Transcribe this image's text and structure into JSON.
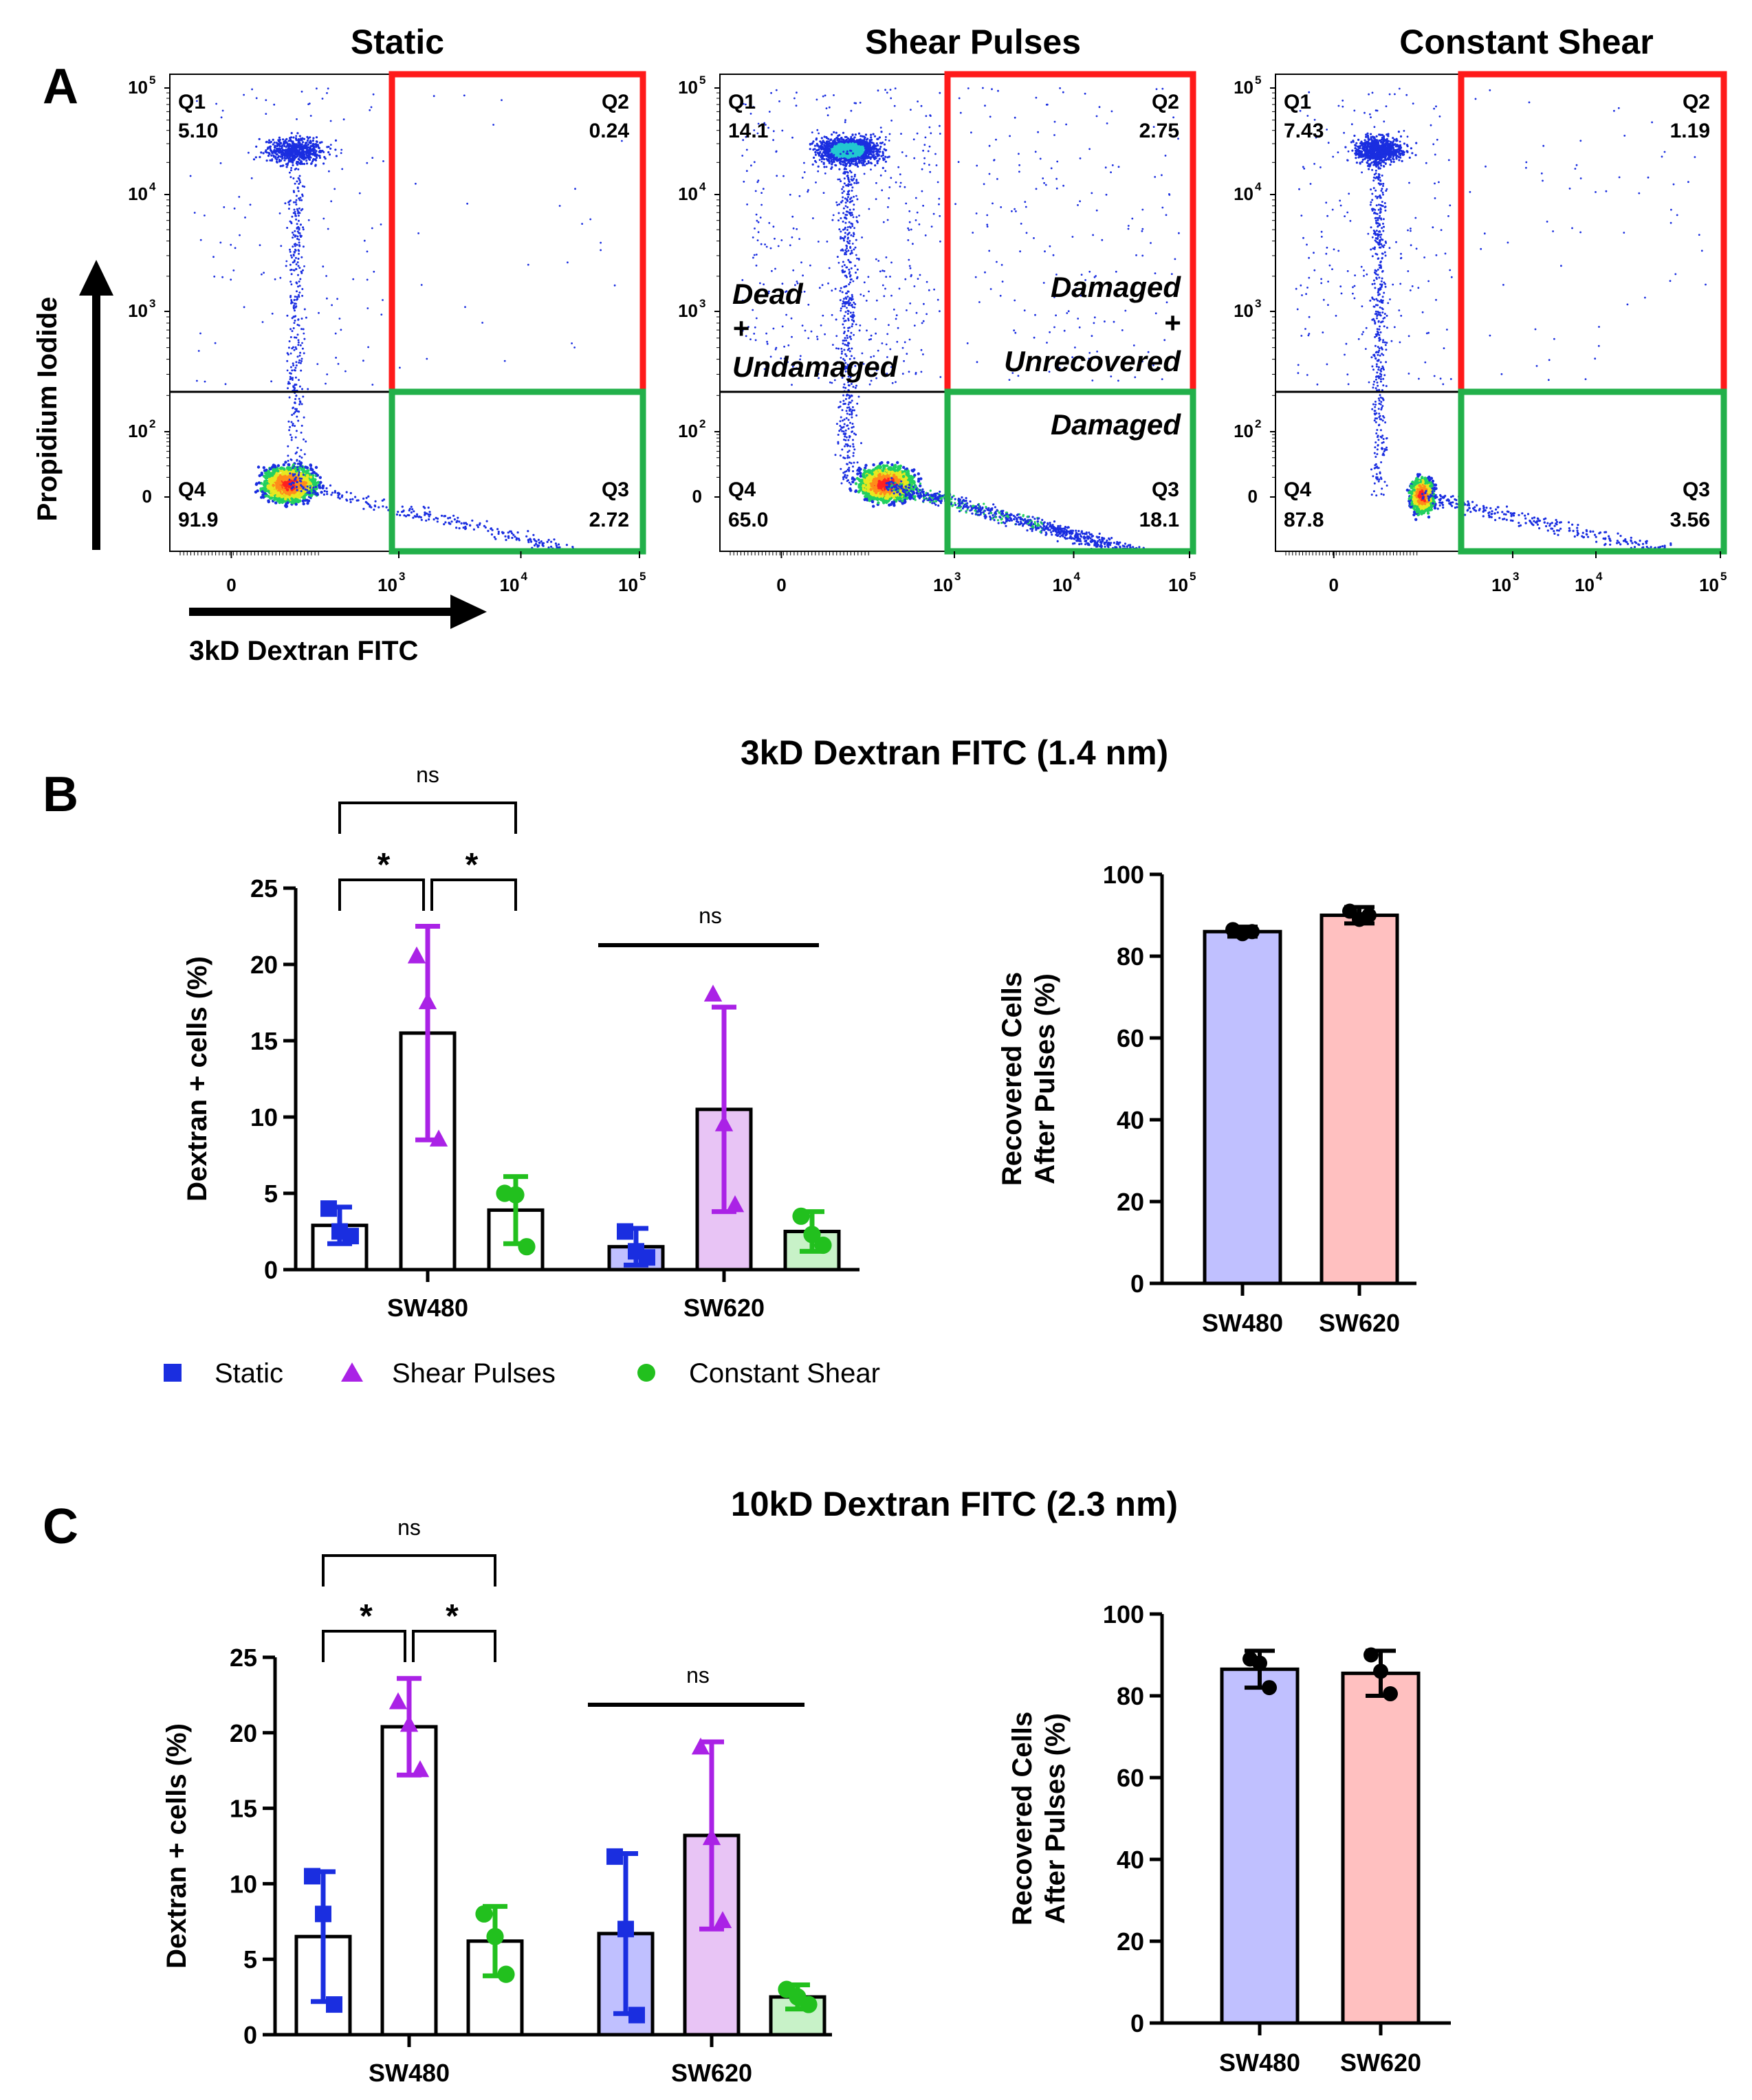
{
  "panels": {
    "A": "A",
    "B": "B",
    "C": "C"
  },
  "flow": {
    "x_axis_label": "3kD Dextran FITC",
    "y_axis_label": "Propidium Iodide",
    "y_ticks": [
      {
        "label": "10",
        "sup": "5",
        "value": 100000
      },
      {
        "label": "10",
        "sup": "4",
        "value": 10000
      },
      {
        "label": "10",
        "sup": "3",
        "value": 1000
      },
      {
        "label": "10",
        "sup": "2",
        "value": 100
      },
      {
        "label": "0",
        "sup": "",
        "value": 0
      }
    ],
    "x_ticks": [
      {
        "label": "0",
        "sup": "",
        "value": 0
      },
      {
        "label": "10",
        "sup": "3",
        "value": 1000
      },
      {
        "label": "10",
        "sup": "4",
        "value": 10000
      },
      {
        "label": "10",
        "sup": "5",
        "value": 100000
      }
    ],
    "plots": [
      {
        "title": "Static",
        "q1": {
          "label": "Q1",
          "value": "5.10"
        },
        "q2": {
          "label": "Q2",
          "value": "0.24"
        },
        "q3": {
          "label": "Q3",
          "value": "2.72"
        },
        "q4": {
          "label": "Q4",
          "value": "91.9"
        },
        "regions": []
      },
      {
        "title": "Shear Pulses",
        "q1": {
          "label": "Q1",
          "value": "14.1"
        },
        "q2": {
          "label": "Q2",
          "value": "2.75"
        },
        "q3": {
          "label": "Q3",
          "value": "18.1"
        },
        "q4": {
          "label": "Q4",
          "value": "65.0"
        },
        "regions": [
          "Dead",
          "+",
          "Undamaged",
          "Damaged",
          "+",
          "Unrecovered",
          "Damaged"
        ]
      },
      {
        "title": "Constant Shear",
        "q1": {
          "label": "Q1",
          "value": "7.43"
        },
        "q2": {
          "label": "Q2",
          "value": "1.19"
        },
        "q3": {
          "label": "Q3",
          "value": "3.56"
        },
        "q4": {
          "label": "Q4",
          "value": "87.8"
        },
        "regions": []
      }
    ]
  },
  "legend": {
    "items": [
      "Static",
      "Shear Pulses",
      "Constant Shear"
    ]
  },
  "colors": {
    "static": "#1a2ee0",
    "pulses": "#aa22e6",
    "constant": "#22c01e",
    "q2_box": "#ff1a1a",
    "q3_box": "#22b04a",
    "sw480_bar": "#c0c0ff",
    "sw620_bar": "#ffc0c0"
  },
  "chart_data": [
    {
      "id": "B-left",
      "type": "bar",
      "title": "3kD Dextran FITC (1.4 nm)",
      "ylabel": "Dextran + cells (%)",
      "xlabel": "",
      "ylim": [
        0,
        25
      ],
      "yticks": [
        "0",
        "5",
        "10",
        "15",
        "20",
        "25"
      ],
      "categories": [
        "SW480",
        "SW620"
      ],
      "series": [
        {
          "name": "Static",
          "values": [
            2.9,
            1.5
          ],
          "err": [
            1.2,
            1.2
          ],
          "points": [
            [
              4.0,
              2.5,
              2.2
            ],
            [
              2.5,
              1.2,
              0.8
            ]
          ],
          "fill": [
            "#ffffff",
            "#c0c0ff"
          ]
        },
        {
          "name": "Shear Pulses",
          "values": [
            15.5,
            10.5
          ],
          "err": [
            7.0,
            6.7
          ],
          "points": [
            [
              20.5,
              17.5,
              8.5
            ],
            [
              18.0,
              9.5,
              4.2
            ]
          ],
          "fill": [
            "#ffffff",
            "#e8c4f5"
          ]
        },
        {
          "name": "Constant Shear",
          "values": [
            3.9,
            2.5
          ],
          "err": [
            2.2,
            1.3
          ],
          "points": [
            [
              5.0,
              4.9,
              1.5
            ],
            [
              3.5,
              2.3,
              1.6
            ]
          ],
          "fill": [
            "#ffffff",
            "#c8f2c8"
          ]
        }
      ],
      "annotations": {
        "sw480_top": "ns",
        "sw480_left": "*",
        "sw480_right": "*",
        "sw620": "ns"
      }
    },
    {
      "id": "B-right",
      "type": "bar",
      "ylabel": "Recovered Cells After Pulses (%)",
      "ylabel_lines": [
        "Recovered Cells",
        "After Pulses (%)"
      ],
      "xlabel": "",
      "ylim": [
        0,
        100
      ],
      "yticks": [
        "0",
        "20",
        "40",
        "60",
        "80",
        "100"
      ],
      "categories": [
        "SW480",
        "SW620"
      ],
      "values": [
        86,
        90
      ],
      "err": [
        1.2,
        2.0
      ],
      "points": [
        [
          86.5,
          85.5,
          86.0
        ],
        [
          91.0,
          89.0,
          90.0
        ]
      ]
    },
    {
      "id": "C-left",
      "type": "bar",
      "title": "10kD Dextran FITC (2.3 nm)",
      "ylabel": "Dextran + cells (%)",
      "xlabel": "",
      "ylim": [
        0,
        25
      ],
      "yticks": [
        "0",
        "5",
        "10",
        "15",
        "20",
        "25"
      ],
      "categories": [
        "SW480",
        "SW620"
      ],
      "series": [
        {
          "name": "Static",
          "values": [
            6.5,
            6.7
          ],
          "err": [
            4.3,
            5.3
          ],
          "points": [
            [
              10.5,
              8.0,
              2.0
            ],
            [
              11.8,
              7.0,
              1.3
            ]
          ],
          "fill": [
            "#ffffff",
            "#c0c0ff"
          ]
        },
        {
          "name": "Shear Pulses",
          "values": [
            20.4,
            13.2
          ],
          "err": [
            3.2,
            6.2
          ],
          "points": [
            [
              22.0,
              20.5,
              17.5
            ],
            [
              19.0,
              13.0,
              7.5
            ]
          ],
          "fill": [
            "#ffffff",
            "#e8c4f5"
          ]
        },
        {
          "name": "Constant Shear",
          "values": [
            6.2,
            2.5
          ],
          "err": [
            2.3,
            0.8
          ],
          "points": [
            [
              8.0,
              6.5,
              4.0
            ],
            [
              3.0,
              2.5,
              2.0
            ]
          ],
          "fill": [
            "#ffffff",
            "#c8f2c8"
          ]
        }
      ],
      "annotations": {
        "sw480_top": "ns",
        "sw480_left": "*",
        "sw480_right": "*",
        "sw620": "ns"
      }
    },
    {
      "id": "C-right",
      "type": "bar",
      "ylabel": "Recovered Cells After Pulses (%)",
      "ylabel_lines": [
        "Recovered Cells",
        "After Pulses (%)"
      ],
      "xlabel": "",
      "ylim": [
        0,
        100
      ],
      "yticks": [
        "0",
        "20",
        "40",
        "60",
        "80",
        "100"
      ],
      "categories": [
        "SW480",
        "SW620"
      ],
      "values": [
        86.5,
        85.5
      ],
      "err": [
        4.5,
        5.5
      ],
      "points": [
        [
          89.0,
          88.0,
          82.0
        ],
        [
          90.0,
          86.0,
          80.5
        ]
      ]
    }
  ]
}
